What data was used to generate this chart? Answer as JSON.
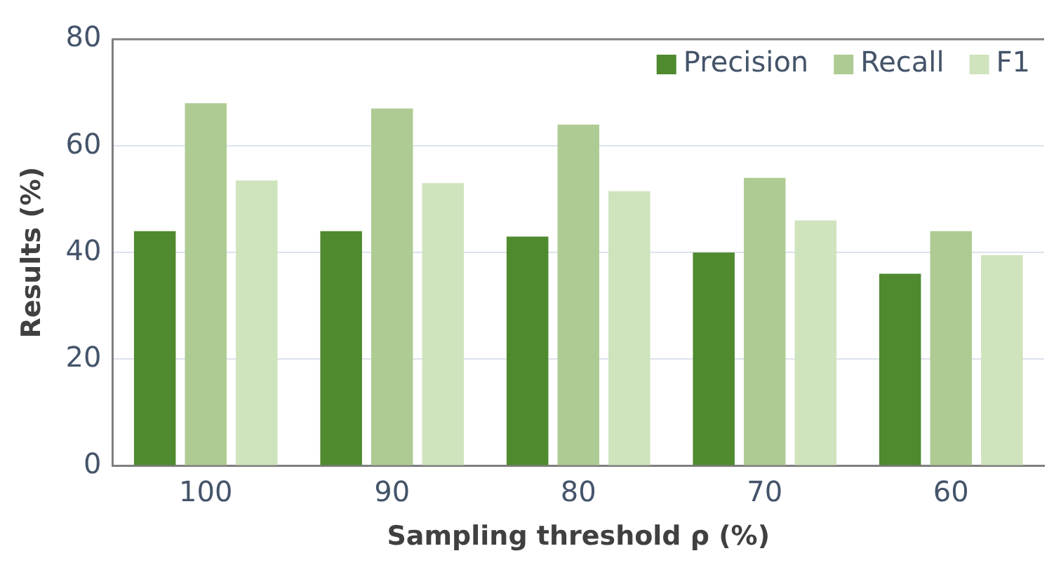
{
  "chart_data": {
    "type": "bar",
    "xlabel": "Sampling threshold ρ (%)",
    "ylabel": "Results (%)",
    "categories": [
      "100",
      "90",
      "80",
      "70",
      "60"
    ],
    "series": [
      {
        "name": "Precision",
        "color": "#4f8a2f",
        "values": [
          44,
          44,
          43,
          40,
          36
        ]
      },
      {
        "name": "Recall",
        "color": "#aecb94",
        "values": [
          68,
          67,
          64,
          54,
          44
        ]
      },
      {
        "name": "F1",
        "color": "#cfe3bd",
        "values": [
          53.5,
          53,
          51.5,
          46,
          39.5
        ]
      }
    ],
    "ylim": [
      0,
      80
    ],
    "yticks": [
      0,
      20,
      40,
      60,
      80
    ],
    "grid": "y",
    "legend": "top right"
  }
}
